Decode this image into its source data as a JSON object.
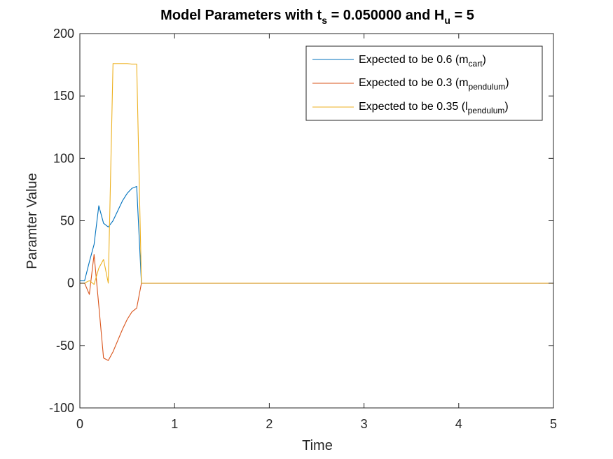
{
  "chart_data": {
    "type": "line",
    "title": {
      "p1": "Model Parameters with t",
      "p1sub": "s",
      "p2": " = 0.050000 and H",
      "p2sub": "u",
      "p3": " = 5"
    },
    "xlabel": "Time",
    "ylabel": "Paramter Value",
    "xlim": [
      0,
      5
    ],
    "ylim": [
      -100,
      200
    ],
    "xticks": [
      0,
      1,
      2,
      3,
      4,
      5
    ],
    "yticks": [
      -100,
      -50,
      0,
      50,
      100,
      150,
      200
    ],
    "grid": false,
    "legend_location": "top-right",
    "series": [
      {
        "name": "Expected to be 0.6 (m_cart)",
        "legend": {
          "pre": "Expected to be 0.6 (m",
          "sub": "cart",
          "post": ")"
        },
        "color": "#0072BD",
        "x": [
          0,
          0.05,
          0.1,
          0.15,
          0.2,
          0.25,
          0.3,
          0.35,
          0.4,
          0.45,
          0.5,
          0.55,
          0.6,
          0.65,
          0.7,
          5
        ],
        "y": [
          2,
          2,
          17,
          31,
          62,
          48,
          45,
          50,
          58,
          66,
          72,
          76,
          77.5,
          0,
          0,
          0
        ]
      },
      {
        "name": "Expected to be 0.3 (m_pendulum)",
        "legend": {
          "pre": "Expected to be 0.3 (m",
          "sub": "pendulum",
          "post": ")"
        },
        "color": "#D95319",
        "x": [
          0,
          0.05,
          0.1,
          0.15,
          0.2,
          0.25,
          0.3,
          0.35,
          0.4,
          0.45,
          0.5,
          0.55,
          0.6,
          0.65,
          0.7,
          5
        ],
        "y": [
          0,
          0,
          -9,
          23,
          -18,
          -60,
          -62,
          -55,
          -46,
          -37,
          -29,
          -23,
          -20,
          0,
          0,
          0
        ]
      },
      {
        "name": "Expected to be 0.35 (l_pendulum)",
        "legend": {
          "pre": "Expected to be 0.35 (l",
          "sub": "pendulum",
          "post": ")"
        },
        "color": "#EDB120",
        "x": [
          0,
          0.05,
          0.1,
          0.15,
          0.2,
          0.25,
          0.3,
          0.35,
          0.4,
          0.45,
          0.5,
          0.55,
          0.6,
          0.65,
          0.7,
          5
        ],
        "y": [
          0,
          0,
          2,
          -1,
          12,
          19,
          0,
          176,
          176,
          176,
          176,
          175.5,
          175.5,
          0,
          0,
          0
        ]
      }
    ]
  }
}
